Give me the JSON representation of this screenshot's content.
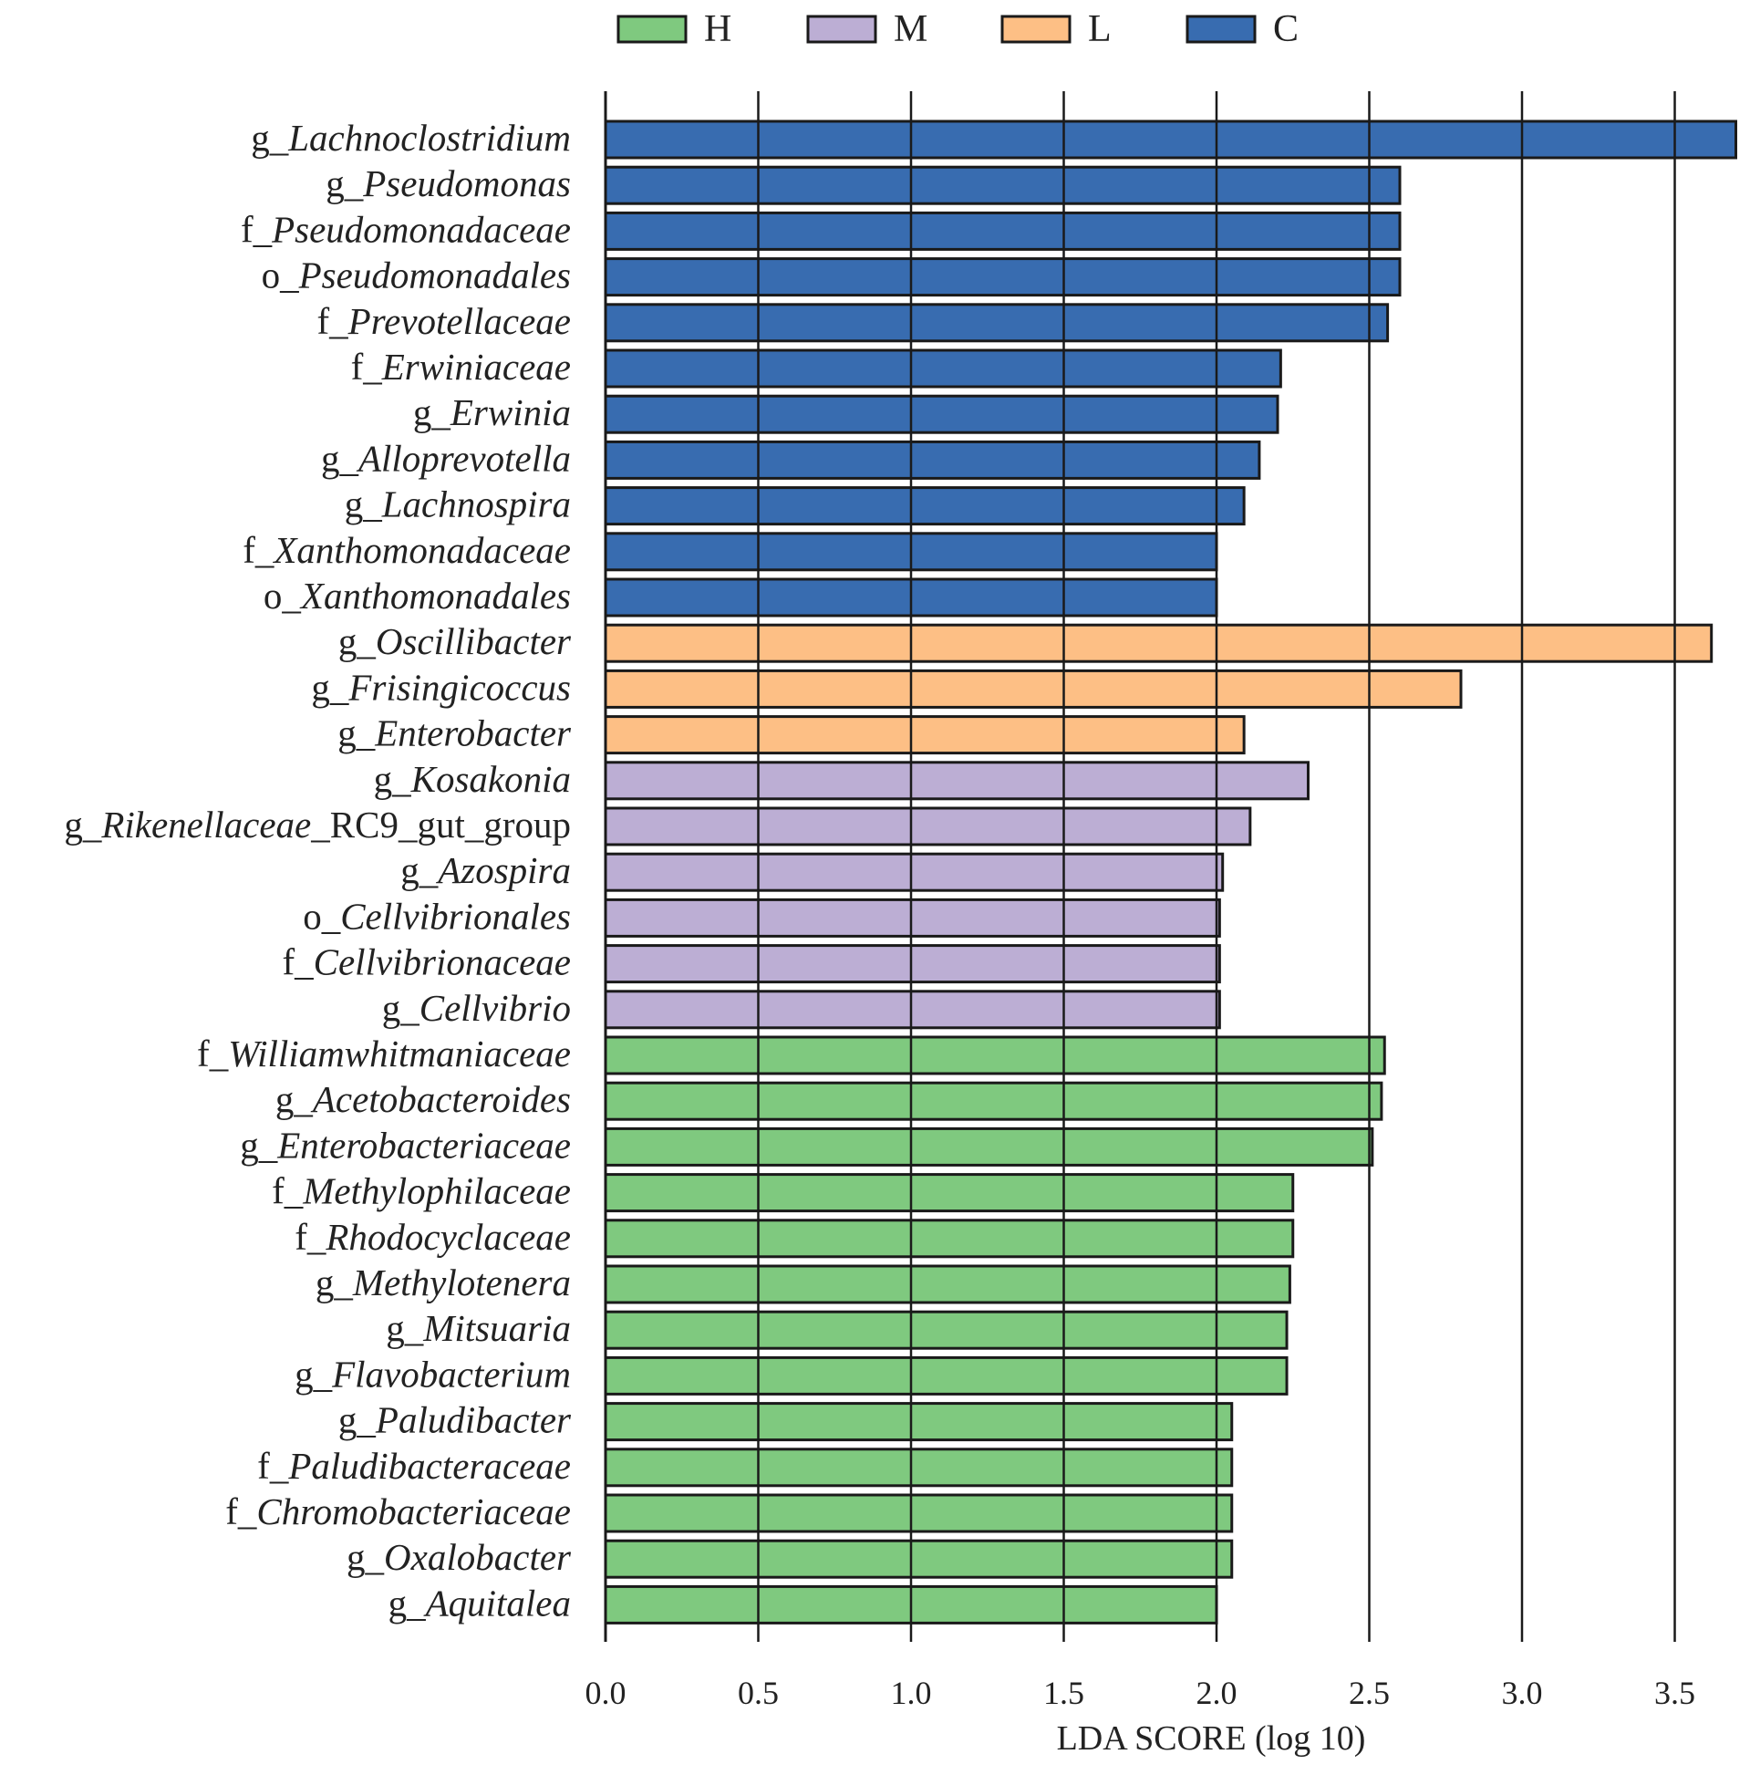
{
  "chart_data": {
    "type": "bar",
    "orientation": "horizontal",
    "xlabel": "LDA SCORE (log 10)",
    "xlim": [
      0,
      3.7
    ],
    "xticks": [
      "0.0",
      "0.5",
      "1.0",
      "1.5",
      "2.0",
      "2.5",
      "3.0",
      "3.5"
    ],
    "grid": "vertical-lines",
    "legend_position": "top",
    "legend": [
      {
        "name": "H",
        "color": "#7fc97f"
      },
      {
        "name": "M",
        "color": "#bcaed4"
      },
      {
        "name": "L",
        "color": "#fdbf85"
      },
      {
        "name": "C",
        "color": "#386cb0"
      }
    ],
    "bars": [
      {
        "prefix": "g_",
        "name": "Lachnoclostridium",
        "suffix": "",
        "value": 3.7,
        "group": "C"
      },
      {
        "prefix": "g_",
        "name": "Pseudomonas",
        "suffix": "",
        "value": 2.6,
        "group": "C"
      },
      {
        "prefix": "f_",
        "name": "Pseudomonadaceae",
        "suffix": "",
        "value": 2.6,
        "group": "C"
      },
      {
        "prefix": "o_",
        "name": "Pseudomonadales",
        "suffix": "",
        "value": 2.6,
        "group": "C"
      },
      {
        "prefix": "f_",
        "name": "Prevotellaceae",
        "suffix": "",
        "value": 2.56,
        "group": "C"
      },
      {
        "prefix": "f_",
        "name": "Erwiniaceae",
        "suffix": "",
        "value": 2.21,
        "group": "C"
      },
      {
        "prefix": "g_",
        "name": "Erwinia",
        "suffix": "",
        "value": 2.2,
        "group": "C"
      },
      {
        "prefix": "g_",
        "name": "Alloprevotella",
        "suffix": "",
        "value": 2.14,
        "group": "C"
      },
      {
        "prefix": "g_",
        "name": "Lachnospira",
        "suffix": "",
        "value": 2.09,
        "group": "C"
      },
      {
        "prefix": "f_",
        "name": "Xanthomonadaceae",
        "suffix": "",
        "value": 2.0,
        "group": "C"
      },
      {
        "prefix": "o_",
        "name": "Xanthomonadales",
        "suffix": "",
        "value": 2.0,
        "group": "C"
      },
      {
        "prefix": "g_",
        "name": "Oscillibacter",
        "suffix": "",
        "value": 3.62,
        "group": "L"
      },
      {
        "prefix": "g_",
        "name": "Frisingicoccus",
        "suffix": "",
        "value": 2.8,
        "group": "L"
      },
      {
        "prefix": "g_",
        "name": "Enterobacter",
        "suffix": "",
        "value": 2.09,
        "group": "L"
      },
      {
        "prefix": "g_",
        "name": "Kosakonia",
        "suffix": "",
        "value": 2.3,
        "group": "M"
      },
      {
        "prefix": "g_",
        "name": "Rikenellaceae",
        "suffix": "_RC9_gut_group",
        "value": 2.11,
        "group": "M"
      },
      {
        "prefix": "g_",
        "name": "Azospira",
        "suffix": "",
        "value": 2.02,
        "group": "M"
      },
      {
        "prefix": "o_",
        "name": "Cellvibrionales",
        "suffix": "",
        "value": 2.01,
        "group": "M"
      },
      {
        "prefix": "f_",
        "name": "Cellvibrionaceae",
        "suffix": "",
        "value": 2.01,
        "group": "M"
      },
      {
        "prefix": "g_",
        "name": "Cellvibrio",
        "suffix": "",
        "value": 2.01,
        "group": "M"
      },
      {
        "prefix": "f_",
        "name": "Williamwhitmaniaceae",
        "suffix": "",
        "value": 2.55,
        "group": "H"
      },
      {
        "prefix": "g_",
        "name": "Acetobacteroides",
        "suffix": "",
        "value": 2.54,
        "group": "H"
      },
      {
        "prefix": "g_",
        "name": "Enterobacteriaceae",
        "suffix": "",
        "value": 2.51,
        "group": "H"
      },
      {
        "prefix": "f_",
        "name": "Methylophilaceae",
        "suffix": "",
        "value": 2.25,
        "group": "H"
      },
      {
        "prefix": "f_",
        "name": "Rhodocyclaceae",
        "suffix": "",
        "value": 2.25,
        "group": "H"
      },
      {
        "prefix": "g_",
        "name": "Methylotenera",
        "suffix": "",
        "value": 2.24,
        "group": "H"
      },
      {
        "prefix": "g_",
        "name": "Mitsuaria",
        "suffix": "",
        "value": 2.23,
        "group": "H"
      },
      {
        "prefix": "g_",
        "name": "Flavobacterium",
        "suffix": "",
        "value": 2.23,
        "group": "H"
      },
      {
        "prefix": "g_",
        "name": "Paludibacter",
        "suffix": "",
        "value": 2.05,
        "group": "H"
      },
      {
        "prefix": "f_",
        "name": "Paludibacteraceae",
        "suffix": "",
        "value": 2.05,
        "group": "H"
      },
      {
        "prefix": "f_",
        "name": "Chromobacteriaceae",
        "suffix": "",
        "value": 2.05,
        "group": "H"
      },
      {
        "prefix": "g_",
        "name": "Oxalobacter",
        "suffix": "",
        "value": 2.05,
        "group": "H"
      },
      {
        "prefix": "g_",
        "name": "Aquitalea",
        "suffix": "",
        "value": 2.0,
        "group": "H"
      }
    ]
  }
}
